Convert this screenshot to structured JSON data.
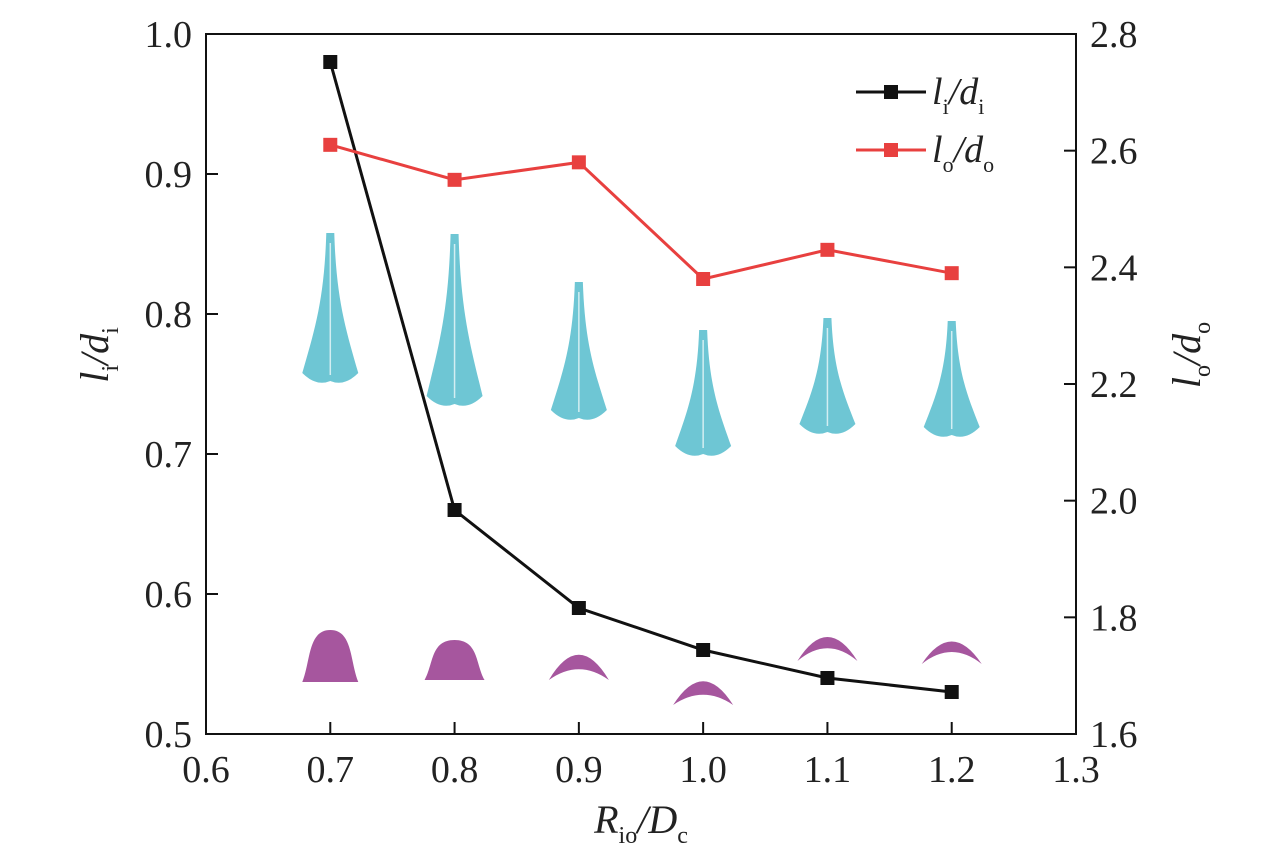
{
  "chart_data": {
    "type": "line",
    "x": [
      0.7,
      0.8,
      0.9,
      1.0,
      1.1,
      1.2
    ],
    "xlim": [
      0.6,
      1.3
    ],
    "xticks": [
      "0.6",
      "0.7",
      "0.8",
      "0.9",
      "1.0",
      "1.1",
      "1.2",
      "1.3"
    ],
    "ylim_left": [
      0.5,
      1.0
    ],
    "yticks_left": [
      "0.5",
      "0.6",
      "0.7",
      "0.8",
      "0.9",
      "1.0"
    ],
    "ylim_right": [
      1.6,
      2.8
    ],
    "yticks_right": [
      "1.6",
      "1.8",
      "2.0",
      "2.2",
      "2.4",
      "2.6",
      "2.8"
    ],
    "xlabel": {
      "main": "R",
      "sub1": "io",
      "mid": "/D",
      "sub2": "c"
    },
    "ylabel_left": {
      "main": "l",
      "sub1": "i",
      "mid": "/d",
      "sub2": "i"
    },
    "ylabel_right": {
      "main": "l",
      "sub1": "o",
      "mid": "/d",
      "sub2": "o"
    },
    "series": [
      {
        "axis": "left",
        "color": "#111111",
        "marker": "square",
        "label": {
          "main": "l",
          "sub1": "i",
          "mid": "/d",
          "sub2": "i"
        },
        "values": [
          0.98,
          0.66,
          0.59,
          0.56,
          0.54,
          0.53
        ]
      },
      {
        "axis": "right",
        "color": "#e8403f",
        "marker": "square",
        "label": {
          "main": "l",
          "sub1": "o",
          "mid": "/d",
          "sub2": "o"
        },
        "values": [
          2.61,
          2.55,
          2.58,
          2.38,
          2.43,
          2.39
        ]
      }
    ],
    "legend_position": "top-right",
    "grid": false,
    "insets": {
      "cyan_color": "#6ec6d4",
      "magenta_color": "#a6569e"
    }
  }
}
